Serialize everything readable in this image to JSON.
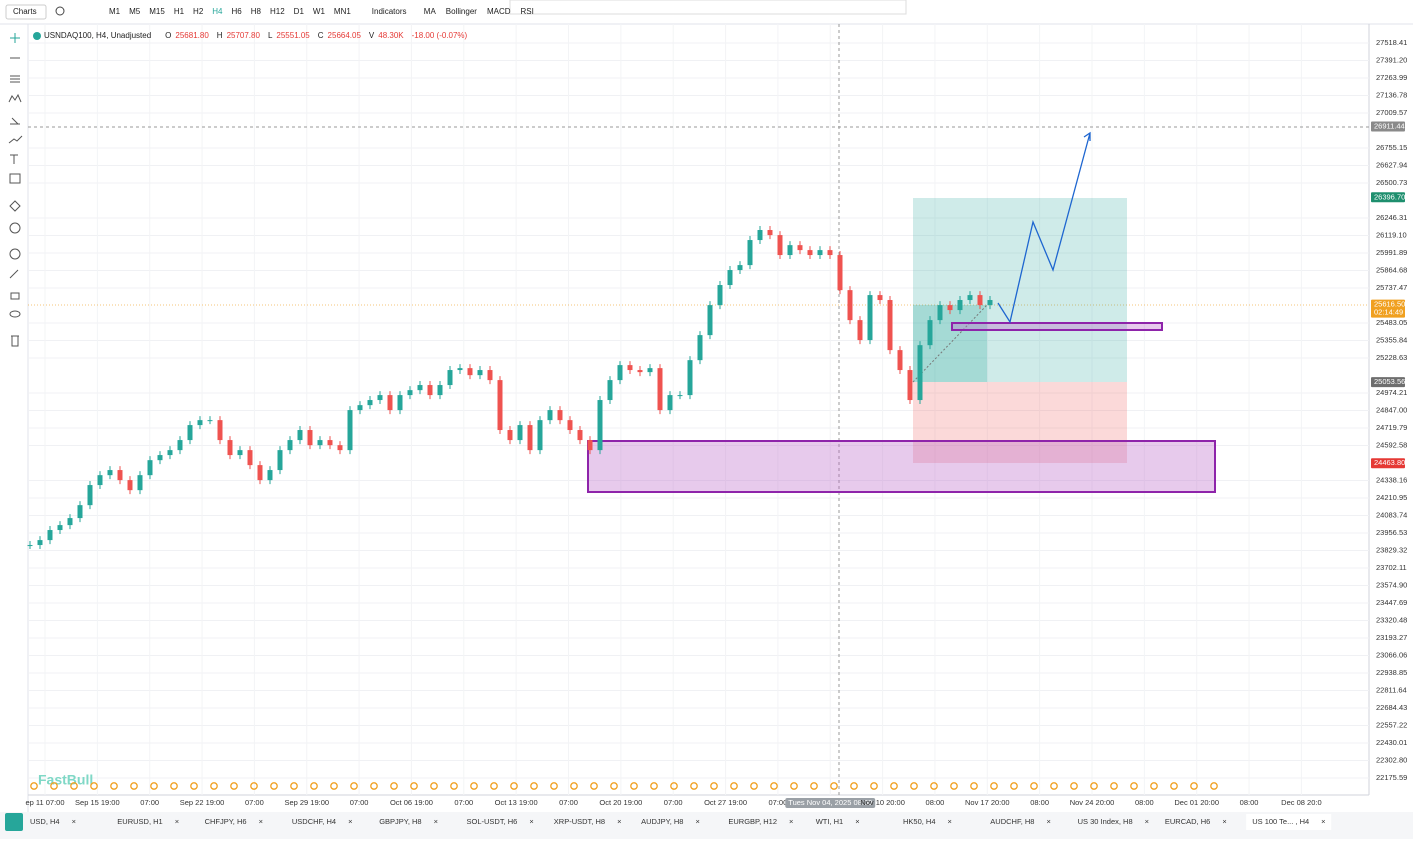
{
  "toolbar": {
    "charts": "Charts",
    "intervals": [
      "M1",
      "M5",
      "M15",
      "H1",
      "H2",
      "H4",
      "H6",
      "H8",
      "H12",
      "D1",
      "W1",
      "MN1"
    ],
    "active_interval": "H4",
    "indicators": "Indicators",
    "studies": [
      "MA",
      "Bollinger",
      "MACD",
      "RSI"
    ]
  },
  "symbol": {
    "name": "USNDAQ100, H4, Unadjusted",
    "fields": [
      {
        "label": "O",
        "value": "25681.80"
      },
      {
        "label": "H",
        "value": "25707.80"
      },
      {
        "label": "L",
        "value": "25551.05"
      },
      {
        "label": "C",
        "value": "25664.05"
      },
      {
        "label": "V",
        "value": "48.30K"
      }
    ],
    "change": "-18.00 (-0.07%)"
  },
  "chart_data": {
    "type": "candlestick",
    "up_color": "#26a69a",
    "down_color": "#ef5350",
    "closes": [
      23869,
      23905,
      23978,
      24014,
      24065,
      24159,
      24305,
      24377,
      24414,
      24341,
      24268,
      24377,
      24486,
      24523,
      24559,
      24632,
      24741,
      24777,
      24777,
      24632,
      24523,
      24559,
      24450,
      24341,
      24414,
      24559,
      24632,
      24705,
      24595,
      24632,
      24595,
      24559,
      24850,
      24886,
      24923,
      24959,
      24850,
      24959,
      24995,
      25032,
      24959,
      25032,
      25141,
      25155,
      25104,
      25141,
      25068,
      24705,
      24632,
      24741,
      24559,
      24777,
      24850,
      24777,
      24705,
      24632,
      24559,
      24923,
      25068,
      25177,
      25141,
      25126,
      25155,
      24850,
      24959,
      24959,
      25213,
      25395,
      25613,
      25759,
      25868,
      25904,
      26086,
      26159,
      26122,
      25977,
      26049,
      26013,
      25977,
      26013,
      25977,
      25722,
      25504,
      25359,
      25686,
      25650,
      25286,
      25141,
      24923,
      25322,
      25504,
      25613,
      25577,
      25650,
      25686,
      25613,
      25650
    ],
    "yticks": [
      27518.41,
      {
        "value": 27391.2,
        "label": "27391.20"
      },
      27263.99,
      27136.78,
      27009.57,
      26755.15,
      26627.94,
      26500.73,
      26246.31,
      {
        "value": 26119.1,
        "label": "26119.10"
      },
      25991.89,
      25864.68,
      25737.47,
      25483.05,
      25355.84,
      25228.63,
      24974.21,
      {
        "value": 24847,
        "label": "24847.00"
      },
      24719.79,
      24592.58,
      24338.16,
      24210.95,
      24083.74,
      23956.53,
      23829.32,
      23702.11,
      {
        "value": 23574.9,
        "label": "23574.90"
      },
      23447.69,
      23320.48,
      23193.27,
      23066.06,
      22938.85,
      22811.64,
      22684.43,
      22557.22,
      22430.01,
      {
        "value": 22302.8,
        "label": "22302.80"
      },
      22175.59
    ],
    "price_tags": [
      {
        "value": 26911.44,
        "color": "#8a8a8a"
      },
      {
        "value": 26396.7,
        "label": "26396.70",
        "color": "#1e8f6e"
      },
      {
        "value": 25616.5,
        "label": "25616.50",
        "color": "#f0a020"
      },
      {
        "value": 25053.56,
        "color": "#6e6e6e"
      },
      {
        "value": 24463.8,
        "label": "24463.80",
        "color": "#e53935"
      }
    ],
    "countdown": "02:14:49",
    "xticks": [
      "ep 11 07:00",
      "Sep 15 19:00",
      "07:00",
      "Sep 22 19:00",
      "07:00",
      "Sep 29 19:00",
      "07:00",
      "Oct 06 19:00",
      "07:00",
      "Oct 13 19:00",
      "07:00",
      "Oct 20 19:00",
      "07:00",
      "Oct 27 19:00",
      "07:00",
      "Tues Nov 04, 2025 08:00",
      "Nov 10 20:00",
      "08:00",
      "Nov 17 20:00",
      "08:00",
      "Nov 24 20:00",
      "08:00",
      "Dec 01 20:00",
      "08:00",
      "Dec 08 20:0"
    ]
  },
  "watermark": "FastBull",
  "tabs": [
    "USD, H4",
    "EURUSD, H1",
    "CHFJPY, H6",
    "USDCHF, H4",
    "GBPJPY, H8",
    "SOL-USDT, H6",
    "XRP-USDT, H8",
    "AUDJPY, H8",
    "EURGBP, H12",
    "WTI, H1",
    "HK50, H4",
    "AUDCHF, H8",
    "US 30 Index, H8",
    "EURCAD, H6",
    "US 100 Te... , H4"
  ],
  "active_tab": "US 100 Te... , H4"
}
